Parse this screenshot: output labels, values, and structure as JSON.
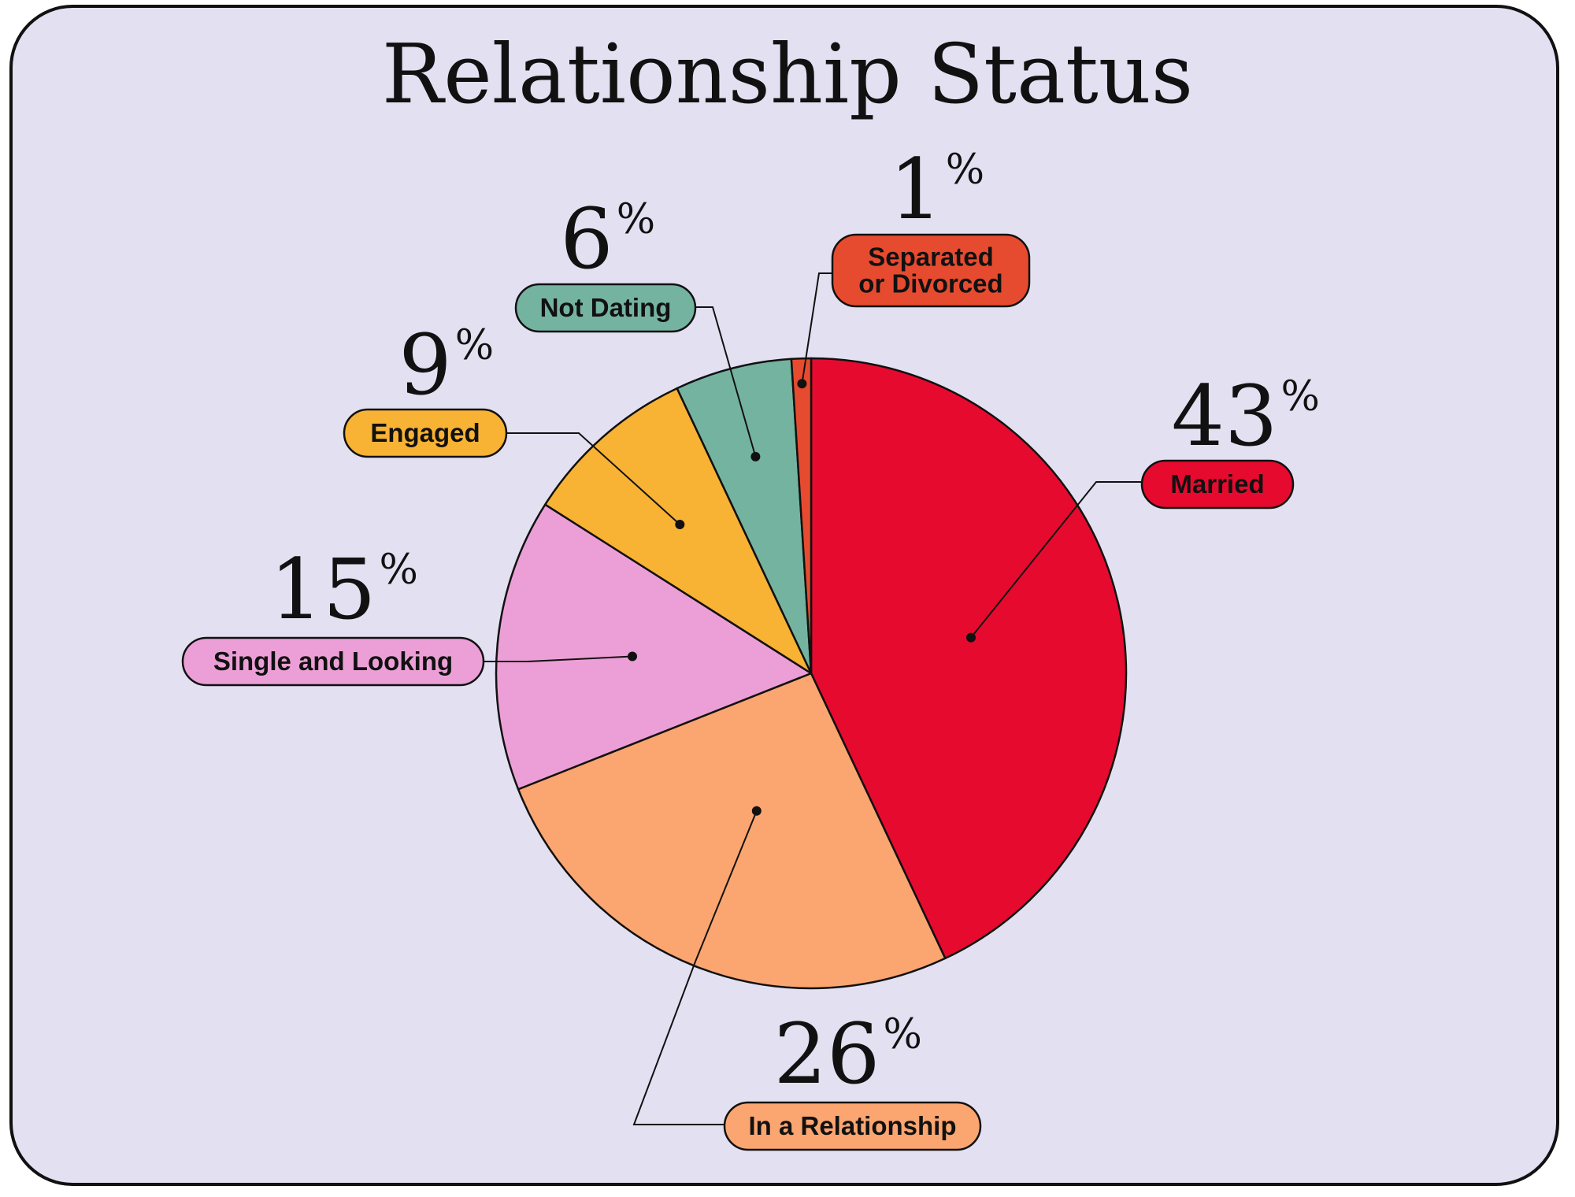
{
  "chart_data": {
    "type": "pie",
    "title": "Relationship Status",
    "unit": "%",
    "categories": [
      "Married",
      "In a Relationship",
      "Single and Looking",
      "Engaged",
      "Not Dating",
      "Separated or Divorced"
    ],
    "values": [
      43,
      26,
      15,
      9,
      6,
      1
    ],
    "value_labels": [
      "43",
      "26",
      "15",
      "9",
      "6",
      "1"
    ],
    "label_lines": [
      [
        "Married"
      ],
      [
        "In a Relationship"
      ],
      [
        "Single and Looking"
      ],
      [
        "Engaged"
      ],
      [
        "Not Dating"
      ],
      [
        "Separated",
        "or Divorced"
      ]
    ],
    "colors": [
      "#e60a2f",
      "#fba570",
      "#ec9fd6",
      "#f8b234",
      "#74b3a0",
      "#e64b30"
    ],
    "background": "#e2e0f1",
    "start": "12 o'clock, clockwise"
  }
}
